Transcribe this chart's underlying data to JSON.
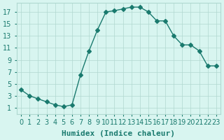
{
  "x": [
    0,
    1,
    2,
    3,
    4,
    5,
    6,
    7,
    8,
    9,
    10,
    11,
    12,
    13,
    14,
    15,
    16,
    17,
    18,
    19,
    20,
    21,
    22,
    23
  ],
  "y": [
    4,
    3,
    2.5,
    2,
    1.5,
    1.2,
    1.5,
    6.5,
    10.5,
    14,
    17,
    17.2,
    17.5,
    17.8,
    17.8,
    17,
    15.5,
    15.5,
    13,
    11.5,
    11.5,
    10.5,
    8,
    8
  ],
  "line_color": "#1a7a6e",
  "marker": "D",
  "marker_size": 3,
  "bg_color": "#d8f5f0",
  "grid_color": "#b0d8d0",
  "xlabel": "Humidex (Indice chaleur)",
  "xlim": [
    -0.5,
    23.5
  ],
  "ylim": [
    0,
    18.5
  ],
  "xtick_labels": [
    "0",
    "1",
    "2",
    "3",
    "4",
    "5",
    "6",
    "7",
    "8",
    "9",
    "10",
    "11",
    "12",
    "13",
    "14",
    "15",
    "16",
    "17",
    "18",
    "19",
    "20",
    "21",
    "22",
    "23"
  ],
  "yticks": [
    1,
    3,
    5,
    7,
    9,
    11,
    13,
    15,
    17
  ],
  "xlabel_fontsize": 8,
  "tick_fontsize": 7
}
